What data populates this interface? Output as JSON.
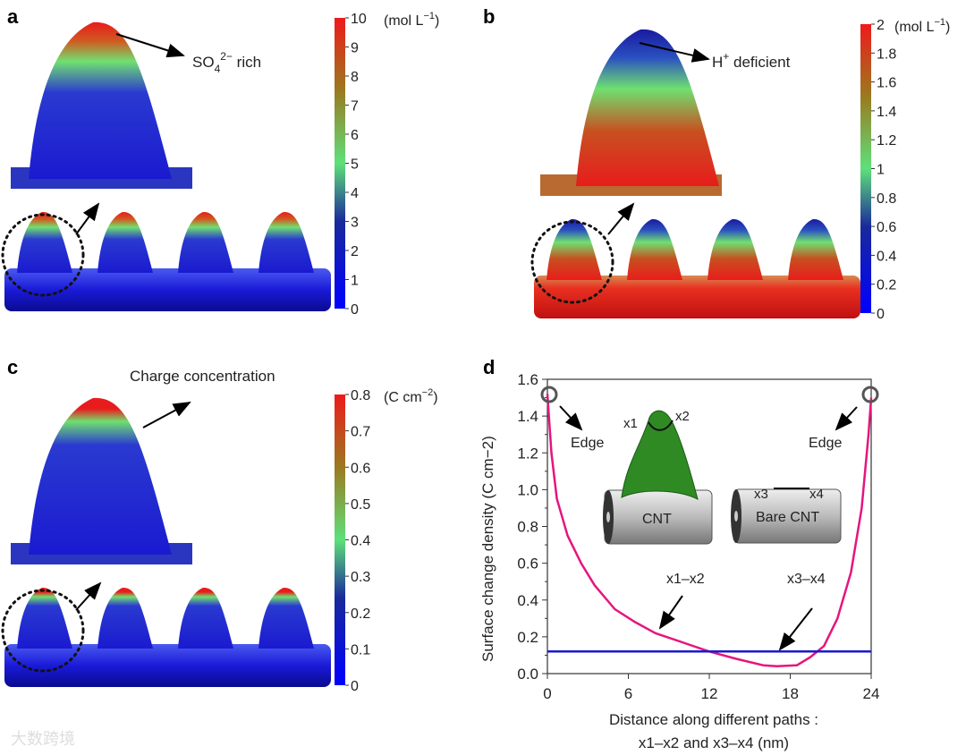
{
  "panels": {
    "a": {
      "label": "a",
      "unit": {
        "main": "(mol L",
        "sup": "−1",
        "end": ")"
      },
      "ticks": [
        "0",
        "1",
        "2",
        "3",
        "4",
        "5",
        "6",
        "7",
        "8",
        "9",
        "10"
      ],
      "annotation": {
        "main": "SO",
        "sub": "4",
        "sup": "2−",
        "end": " rich"
      }
    },
    "b": {
      "label": "b",
      "unit": {
        "main": "(mol L",
        "sup": "−1",
        "end": ")"
      },
      "ticks": [
        "0",
        "0.2",
        "0.4",
        "0.6",
        "0.8",
        "1",
        "1.2",
        "1.4",
        "1.6",
        "1.8",
        "2"
      ],
      "annotation": {
        "main": "H",
        "sup": "+",
        "end": " deficient"
      }
    },
    "c": {
      "label": "c",
      "unit": {
        "main": "(C cm",
        "sup": "−2",
        "end": ")"
      },
      "ticks": [
        "0",
        "0.1",
        "0.2",
        "0.3",
        "0.4",
        "0.5",
        "0.6",
        "0.7",
        "0.8"
      ],
      "annotation": {
        "main": "Charge concentration"
      }
    },
    "d": {
      "label": "d"
    }
  },
  "colors": {
    "red": "#e8241c",
    "green": "#6ee06a",
    "blue": "#1a1ad0",
    "curve": "#e6157e",
    "line": "#1a1acc"
  },
  "chart_data": {
    "type": "line",
    "title": "",
    "xlabel": {
      "line1": "Distance along different paths :",
      "line2": "x1–x2 and x3–x4 (nm)"
    },
    "ylabel": "Surface change density (C cm−2)",
    "xlim": [
      0,
      24
    ],
    "ylim": [
      0,
      1.6
    ],
    "xticks": [
      "0",
      "6",
      "12",
      "18",
      "24"
    ],
    "yticks": [
      "0.0",
      "0.2",
      "0.4",
      "0.6",
      "0.8",
      "1.0",
      "1.2",
      "1.4",
      "1.6"
    ],
    "series": [
      {
        "name": "x1–x2",
        "x": [
          0,
          0.3,
          0.7,
          1.5,
          2.5,
          3.5,
          5,
          6.5,
          8,
          10,
          12,
          14,
          16,
          17,
          18.5,
          19.5,
          20.5,
          21.5,
          22.5,
          23.3,
          23.8,
          24
        ],
        "y": [
          1.52,
          1.2,
          0.95,
          0.75,
          0.6,
          0.48,
          0.35,
          0.28,
          0.22,
          0.17,
          0.12,
          0.08,
          0.045,
          0.04,
          0.045,
          0.09,
          0.15,
          0.3,
          0.55,
          0.9,
          1.3,
          1.5
        ]
      },
      {
        "name": "x3–x4",
        "x": [
          0,
          24
        ],
        "y": [
          0.12,
          0.12
        ]
      }
    ],
    "annotations": {
      "edge": "Edge",
      "x1x2": "x1–x2",
      "x3x4": "x3–x4",
      "cnt": "CNT",
      "bare_cnt": "Bare CNT",
      "x1": "x1",
      "x2": "x2",
      "x3": "x3",
      "x4": "x4"
    }
  },
  "watermark": "大数跨境"
}
